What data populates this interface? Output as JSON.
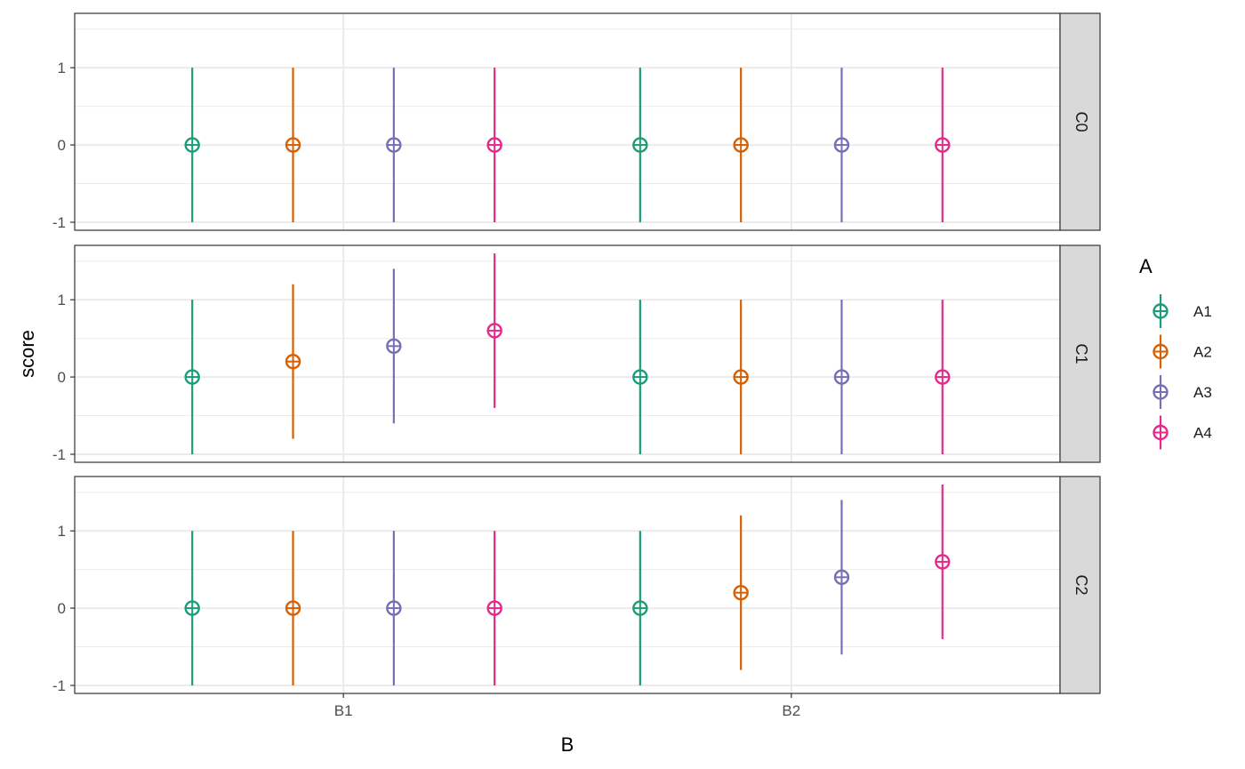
{
  "chart_data": {
    "type": "scatter",
    "subtype": "pointrange-faceted",
    "xlabel": "B",
    "ylabel": "score",
    "x_categories": [
      "B1",
      "B2"
    ],
    "dodge_groups": [
      "A1",
      "A2",
      "A3",
      "A4"
    ],
    "ylim": [
      -1.0,
      1.6
    ],
    "y_ticks": [
      -1,
      0,
      1
    ],
    "y_tick_labels": [
      "-1",
      "0",
      "1"
    ],
    "grid": true,
    "legend": {
      "title": "A",
      "position": "right",
      "items": [
        {
          "name": "A1",
          "color": "#1b9e77"
        },
        {
          "name": "A2",
          "color": "#d95f02"
        },
        {
          "name": "A3",
          "color": "#7570b3"
        },
        {
          "name": "A4",
          "color": "#e7298a"
        }
      ]
    },
    "facets": [
      {
        "label": "C0",
        "series": [
          {
            "name": "A1",
            "points": [
              {
                "x": "B1",
                "y": 0,
                "ymin": -1,
                "ymax": 1
              },
              {
                "x": "B2",
                "y": 0,
                "ymin": -1,
                "ymax": 1
              }
            ]
          },
          {
            "name": "A2",
            "points": [
              {
                "x": "B1",
                "y": 0,
                "ymin": -1,
                "ymax": 1
              },
              {
                "x": "B2",
                "y": 0,
                "ymin": -1,
                "ymax": 1
              }
            ]
          },
          {
            "name": "A3",
            "points": [
              {
                "x": "B1",
                "y": 0,
                "ymin": -1,
                "ymax": 1
              },
              {
                "x": "B2",
                "y": 0,
                "ymin": -1,
                "ymax": 1
              }
            ]
          },
          {
            "name": "A4",
            "points": [
              {
                "x": "B1",
                "y": 0,
                "ymin": -1,
                "ymax": 1
              },
              {
                "x": "B2",
                "y": 0,
                "ymin": -1,
                "ymax": 1
              }
            ]
          }
        ]
      },
      {
        "label": "C1",
        "series": [
          {
            "name": "A1",
            "points": [
              {
                "x": "B1",
                "y": 0,
                "ymin": -1,
                "ymax": 1
              },
              {
                "x": "B2",
                "y": 0,
                "ymin": -1,
                "ymax": 1
              }
            ]
          },
          {
            "name": "A2",
            "points": [
              {
                "x": "B1",
                "y": 0.2,
                "ymin": -0.8,
                "ymax": 1.2
              },
              {
                "x": "B2",
                "y": 0,
                "ymin": -1,
                "ymax": 1
              }
            ]
          },
          {
            "name": "A3",
            "points": [
              {
                "x": "B1",
                "y": 0.4,
                "ymin": -0.6,
                "ymax": 1.4
              },
              {
                "x": "B2",
                "y": 0,
                "ymin": -1,
                "ymax": 1
              }
            ]
          },
          {
            "name": "A4",
            "points": [
              {
                "x": "B1",
                "y": 0.6,
                "ymin": -0.4,
                "ymax": 1.6
              },
              {
                "x": "B2",
                "y": 0,
                "ymin": -1,
                "ymax": 1
              }
            ]
          }
        ]
      },
      {
        "label": "C2",
        "series": [
          {
            "name": "A1",
            "points": [
              {
                "x": "B1",
                "y": 0,
                "ymin": -1,
                "ymax": 1
              },
              {
                "x": "B2",
                "y": 0,
                "ymin": -1,
                "ymax": 1
              }
            ]
          },
          {
            "name": "A2",
            "points": [
              {
                "x": "B1",
                "y": 0,
                "ymin": -1,
                "ymax": 1
              },
              {
                "x": "B2",
                "y": 0.2,
                "ymin": -0.8,
                "ymax": 1.2
              }
            ]
          },
          {
            "name": "A3",
            "points": [
              {
                "x": "B1",
                "y": 0,
                "ymin": -1,
                "ymax": 1
              },
              {
                "x": "B2",
                "y": 0.4,
                "ymin": -0.6,
                "ymax": 1.4
              }
            ]
          },
          {
            "name": "A4",
            "points": [
              {
                "x": "B1",
                "y": 0,
                "ymin": -1,
                "ymax": 1
              },
              {
                "x": "B2",
                "y": 0.6,
                "ymin": -0.4,
                "ymax": 1.6
              }
            ]
          }
        ]
      }
    ]
  }
}
